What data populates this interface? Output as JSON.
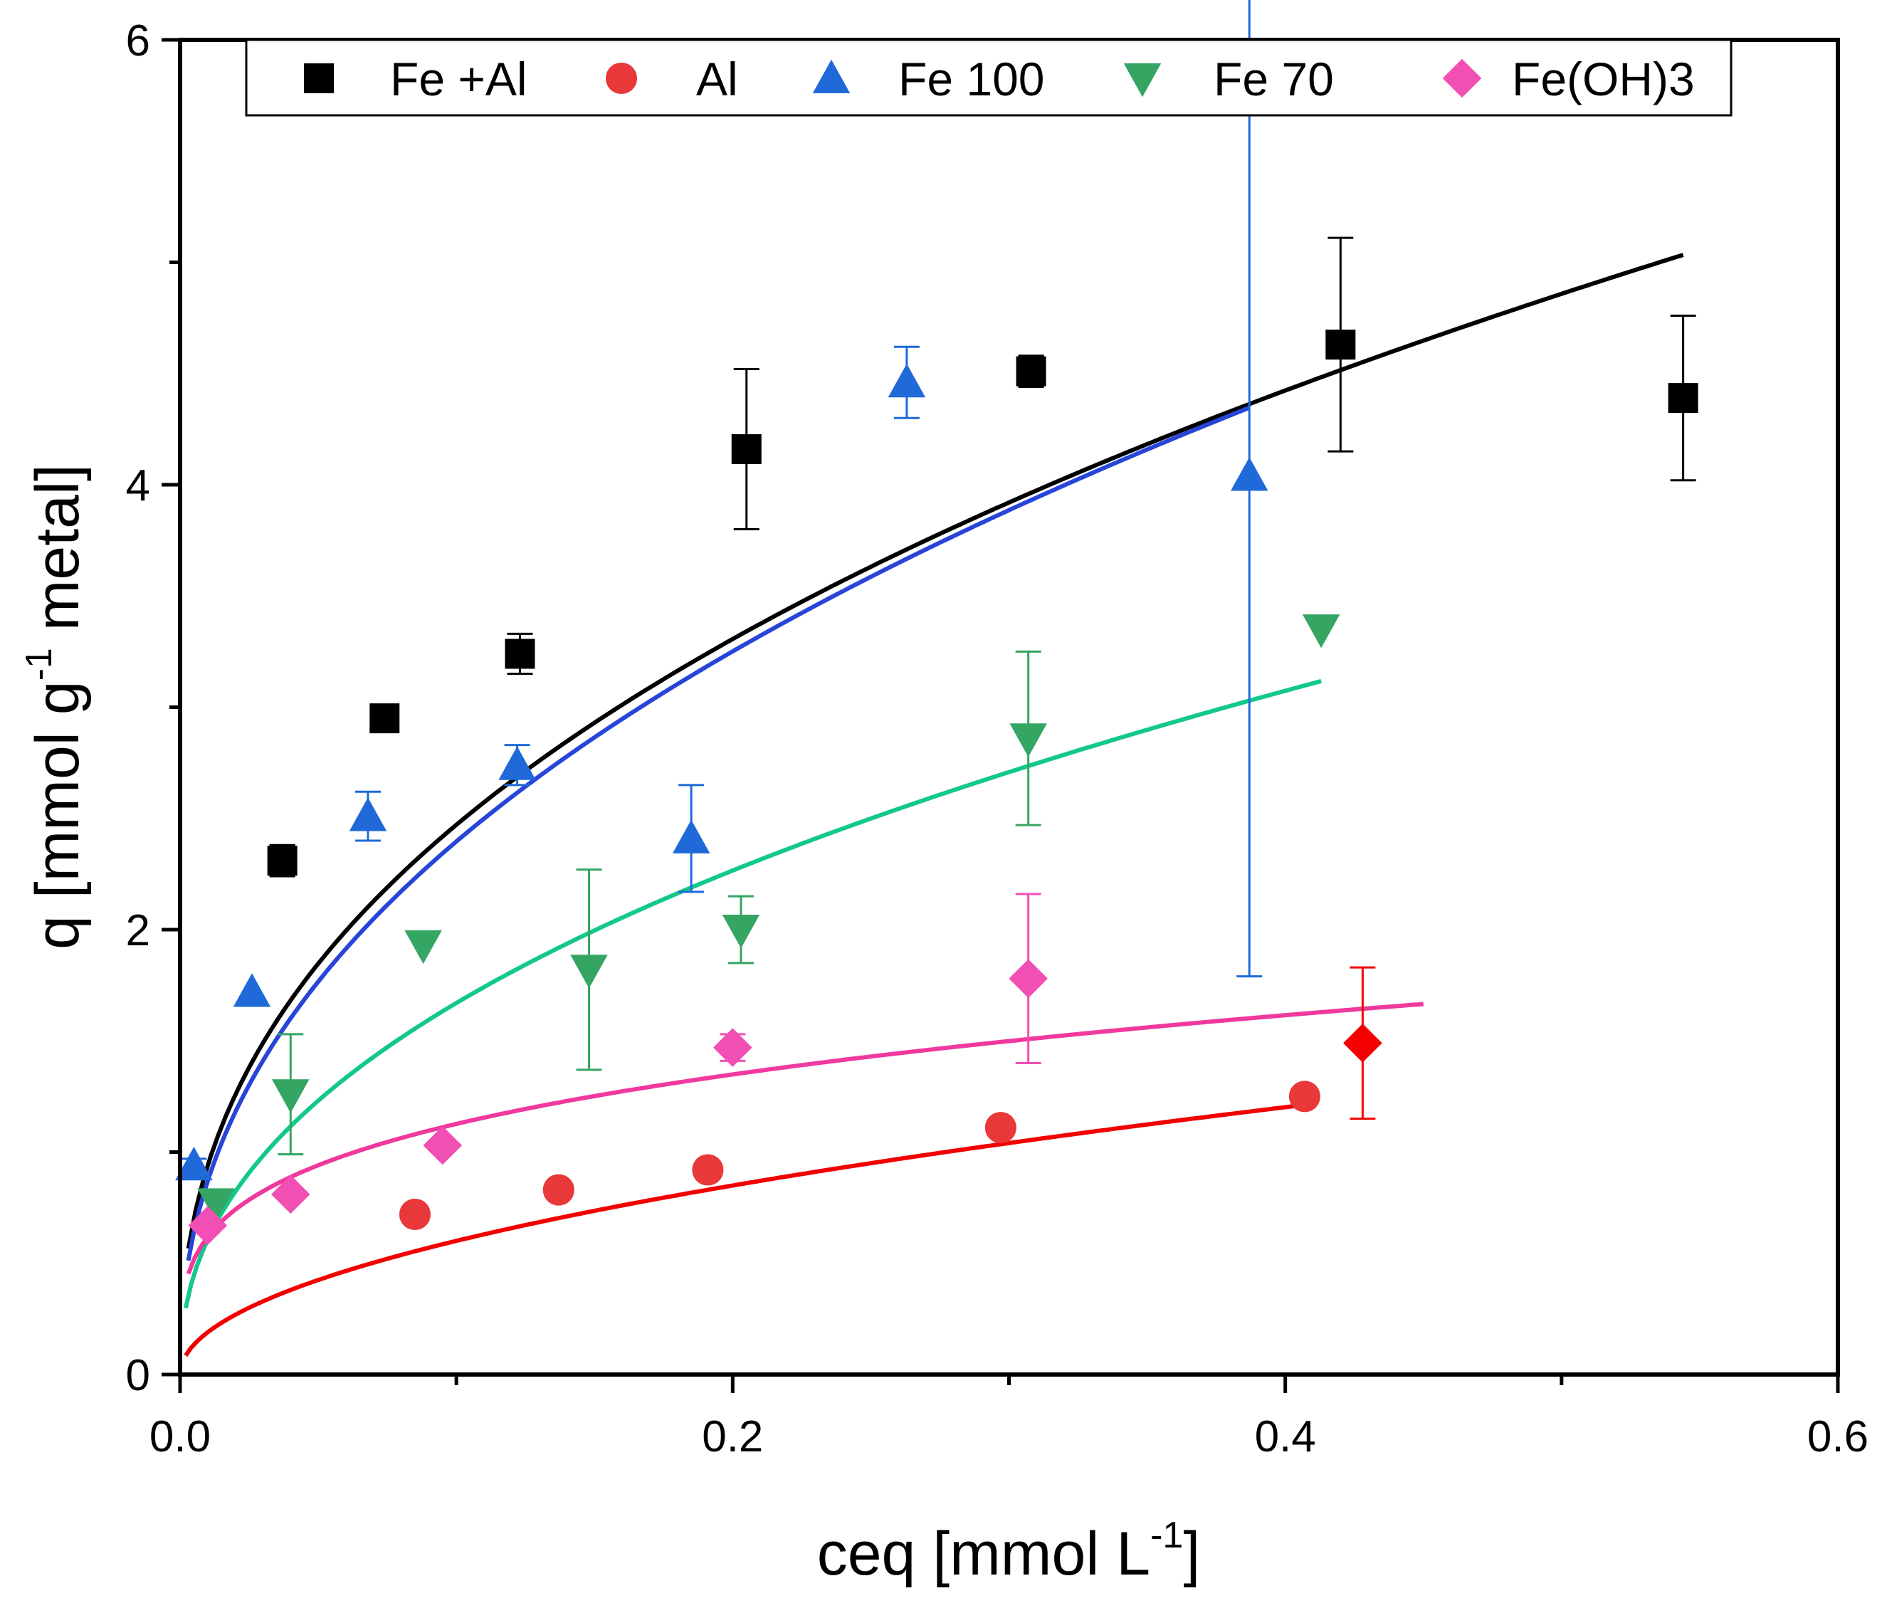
{
  "chart_data": {
    "type": "scatter",
    "xlabel_main": "ceq [mmol L",
    "xlabel_sup": "-1",
    "xlabel_end": "]",
    "ylabel_main": "q [mmol g",
    "ylabel_sup": "-1",
    "ylabel_end": " metal]",
    "xlim": [
      0,
      0.6
    ],
    "ylim": [
      0,
      6
    ],
    "xticks": [
      0.0,
      0.2,
      0.4,
      0.6
    ],
    "xtick_labels": [
      "0.0",
      "0.2",
      "0.4",
      "0.6"
    ],
    "yticks": [
      0,
      2,
      4,
      6
    ],
    "ytick_labels": [
      "0",
      "2",
      "4",
      "6"
    ],
    "legend_position": "top",
    "series": [
      {
        "name": "Fe +Al",
        "marker": "square",
        "color": "#000000",
        "points": [
          {
            "x": 0.037,
            "y": 2.31,
            "err": 0.07
          },
          {
            "x": 0.074,
            "y": 2.95,
            "err": 0.0
          },
          {
            "x": 0.123,
            "y": 3.24,
            "err": 0.09
          },
          {
            "x": 0.205,
            "y": 4.16,
            "err": 0.36
          },
          {
            "x": 0.308,
            "y": 4.51,
            "err": 0.07
          },
          {
            "x": 0.42,
            "y": 4.63,
            "err": 0.48
          },
          {
            "x": 0.544,
            "y": 4.39,
            "err": 0.37
          }
        ],
        "fit": {
          "x0": 0.003,
          "x1": 0.544,
          "k": 6.5,
          "n": 0.42
        }
      },
      {
        "name": "Al",
        "marker": "circle",
        "color": "#e8383a",
        "points": [
          {
            "x": 0.085,
            "y": 0.72
          },
          {
            "x": 0.137,
            "y": 0.83
          },
          {
            "x": 0.191,
            "y": 0.92
          },
          {
            "x": 0.297,
            "y": 1.11
          },
          {
            "x": 0.407,
            "y": 1.25
          }
        ],
        "fit": {
          "x0": 0.002,
          "x1": 0.407,
          "k": 1.9,
          "n": 0.5
        }
      },
      {
        "name": "Fe 100",
        "marker": "triangle-up",
        "color": "#1f6ad8",
        "points": [
          {
            "x": 0.005,
            "y": 0.94,
            "err": 0.03
          },
          {
            "x": 0.026,
            "y": 1.72,
            "err": 0.0
          },
          {
            "x": 0.068,
            "y": 2.51,
            "err": 0.11
          },
          {
            "x": 0.122,
            "y": 2.74,
            "err": 0.09
          },
          {
            "x": 0.185,
            "y": 2.41,
            "err": 0.24
          },
          {
            "x": 0.263,
            "y": 4.46,
            "err": 0.16
          },
          {
            "x": 0.387,
            "y": 4.04,
            "err": 2.25
          }
        ],
        "fit": {
          "x0": 0.003,
          "x1": 0.387,
          "k": 6.6,
          "n": 0.44
        }
      },
      {
        "name": "Fe 70",
        "marker": "triangle-down",
        "color": "#35a563",
        "points": [
          {
            "x": 0.013,
            "y": 0.77,
            "err": 0.0
          },
          {
            "x": 0.04,
            "y": 1.26,
            "err": 0.27
          },
          {
            "x": 0.088,
            "y": 1.93,
            "err": 0.0
          },
          {
            "x": 0.148,
            "y": 1.82,
            "err": 0.45
          },
          {
            "x": 0.203,
            "y": 2.0,
            "err": 0.15
          },
          {
            "x": 0.307,
            "y": 2.86,
            "err": 0.39
          },
          {
            "x": 0.413,
            "y": 3.35,
            "err": 0.0
          }
        ],
        "fit": {
          "x0": 0.002,
          "x1": 0.413,
          "k": 4.6,
          "n": 0.44
        }
      },
      {
        "name": "Fe(OH)3",
        "marker": "diamond",
        "color": "#f24fb4",
        "points": [
          {
            "x": 0.01,
            "y": 0.67
          },
          {
            "x": 0.04,
            "y": 0.81
          },
          {
            "x": 0.095,
            "y": 1.03
          },
          {
            "x": 0.2,
            "y": 1.47,
            "err": 0.06
          },
          {
            "x": 0.307,
            "y": 1.78,
            "err": 0.38
          }
        ],
        "fit": {
          "x0": 0.003,
          "x1": 0.45,
          "k": 2.05,
          "n": 0.26
        }
      },
      {
        "name": "",
        "marker": "diamond",
        "color": "#f50000",
        "in_legend": false,
        "points": [
          {
            "x": 0.428,
            "y": 1.49,
            "err": 0.34
          }
        ]
      }
    ]
  }
}
